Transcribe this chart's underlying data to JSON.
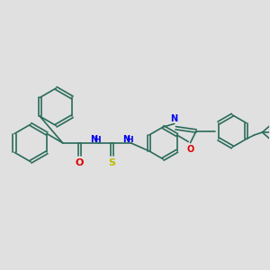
{
  "bg_color": "#e0e0e0",
  "bc": "#2a6b5a",
  "N_color": "#0000ee",
  "O_color": "#dd0000",
  "S_color": "#bbbb00",
  "lw": 1.2,
  "dbo": 0.055,
  "xlim": [
    0,
    10
  ],
  "ylim": [
    1.5,
    8.5
  ]
}
